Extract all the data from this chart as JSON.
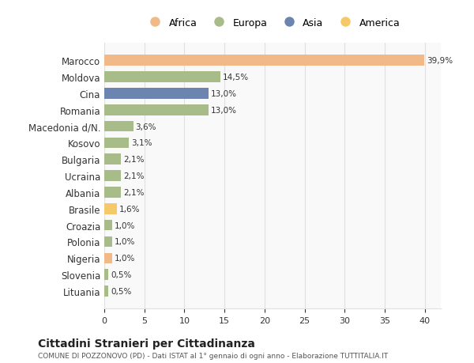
{
  "categories": [
    "Marocco",
    "Moldova",
    "Cina",
    "Romania",
    "Macedonia d/N.",
    "Kosovo",
    "Bulgaria",
    "Ucraina",
    "Albania",
    "Brasile",
    "Croazia",
    "Polonia",
    "Nigeria",
    "Slovenia",
    "Lituania"
  ],
  "values": [
    39.9,
    14.5,
    13.0,
    13.0,
    3.6,
    3.1,
    2.1,
    2.1,
    2.1,
    1.6,
    1.0,
    1.0,
    1.0,
    0.5,
    0.5
  ],
  "labels": [
    "39,9%",
    "14,5%",
    "13,0%",
    "13,0%",
    "3,6%",
    "3,1%",
    "2,1%",
    "2,1%",
    "2,1%",
    "1,6%",
    "1,0%",
    "1,0%",
    "1,0%",
    "0,5%",
    "0,5%"
  ],
  "colors": [
    "#F0B987",
    "#A8BC8A",
    "#6B85B0",
    "#A8BC8A",
    "#A8BC8A",
    "#A8BC8A",
    "#A8BC8A",
    "#A8BC8A",
    "#A8BC8A",
    "#F5C96A",
    "#A8BC8A",
    "#A8BC8A",
    "#F0B987",
    "#A8BC8A",
    "#A8BC8A"
  ],
  "continent_colors": {
    "Africa": "#F0B987",
    "Europa": "#A8BC8A",
    "Asia": "#6B85B0",
    "America": "#F5C96A"
  },
  "legend_order": [
    "Africa",
    "Europa",
    "Asia",
    "America"
  ],
  "title1": "Cittadini Stranieri per Cittadinanza",
  "title2": "COMUNE DI POZZONOVO (PD) - Dati ISTAT al 1° gennaio di ogni anno - Elaborazione TUTTITALIA.IT",
  "xlim": [
    0,
    42
  ],
  "xticks": [
    0,
    5,
    10,
    15,
    20,
    25,
    30,
    35,
    40
  ],
  "background_color": "#ffffff",
  "plot_bg_color": "#f9f9f9",
  "grid_color": "#e0e0e0"
}
